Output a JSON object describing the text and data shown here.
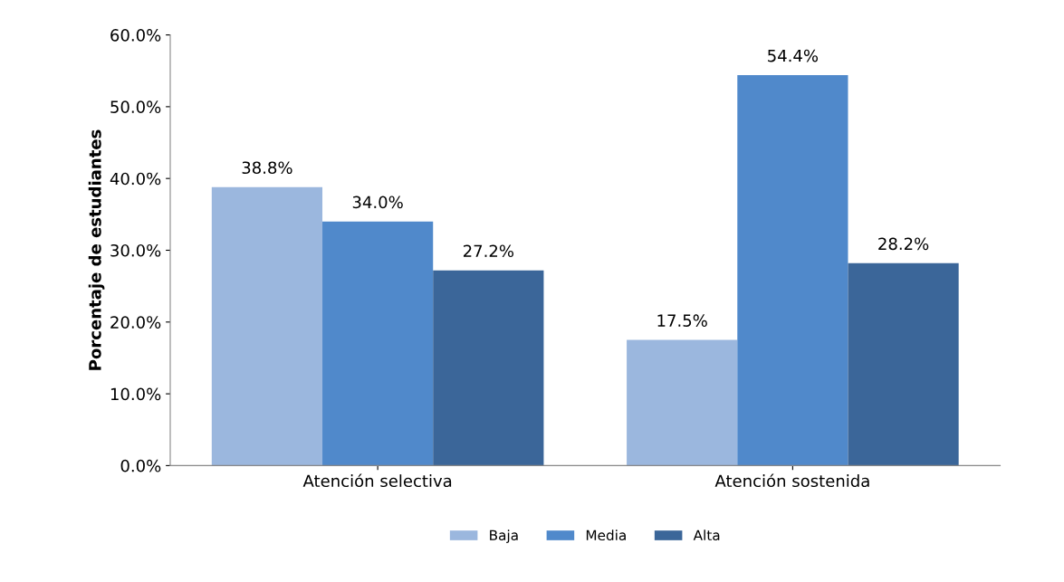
{
  "chart_data": {
    "type": "bar",
    "ylabel": "Porcentaje de estudiantes",
    "categories": [
      "Atención selectiva",
      "Atención sostenida"
    ],
    "series": [
      {
        "name": "Baja",
        "color": "#9bb7de",
        "values": [
          38.8,
          17.5
        ],
        "value_labels": [
          "38.8%",
          "17.5%"
        ]
      },
      {
        "name": "Media",
        "color": "#5089cb",
        "values": [
          34.0,
          54.4
        ],
        "value_labels": [
          "34.0%",
          "54.4%"
        ]
      },
      {
        "name": "Alta",
        "color": "#3b6699",
        "values": [
          27.2,
          28.2
        ],
        "value_labels": [
          "27.2%",
          "28.2%"
        ]
      }
    ],
    "ylim": [
      0,
      60
    ],
    "yticks": [
      {
        "value": 0,
        "label": "0.0%"
      },
      {
        "value": 10,
        "label": "10.0%"
      },
      {
        "value": 20,
        "label": "20.0%"
      },
      {
        "value": 30,
        "label": "30.0%"
      },
      {
        "value": 40,
        "label": "40.0%"
      },
      {
        "value": 50,
        "label": "50.0%"
      },
      {
        "value": 60,
        "label": "60.0%"
      }
    ],
    "grid": false,
    "legend": "bottom"
  }
}
